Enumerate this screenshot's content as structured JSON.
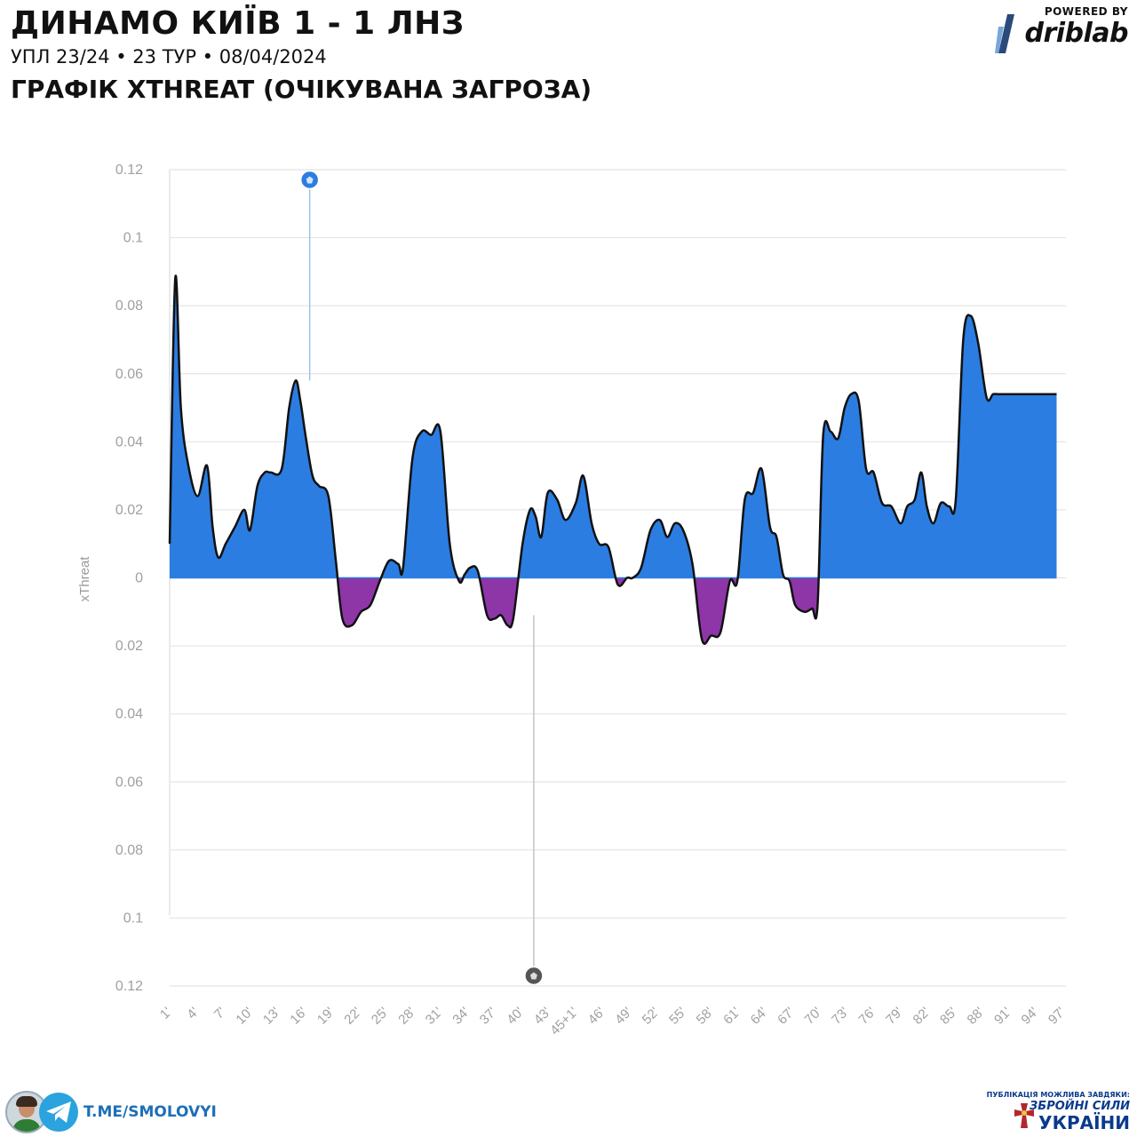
{
  "header": {
    "title": "ДИНАМО КИЇВ 1 - 1 ЛНЗ",
    "subtitle": "УПЛ 23/24 • 23 ТУР • 08/04/2024",
    "chart_heading": "ГРАФІК XTHREAT (ОЧІКУВАНА ЗАГРОЗА)"
  },
  "brand": {
    "powered": "POWERED BY",
    "name": "driblab"
  },
  "footer": {
    "telegram": "T.ME/SMOLOVYI",
    "note": "ПУБЛІКАЦІЯ МОЖЛИВА ЗАВДЯКИ:",
    "line1": "ЗБРОЙНІ СИЛИ",
    "line2": "УКРАЇНИ"
  },
  "colors": {
    "positive": "#2b7de1",
    "negative": "#8e35a8",
    "line": "#111111",
    "grid": "#e4e4e4",
    "home_goal": "#2b7de1",
    "away_goal": "#555555"
  },
  "chart_data": {
    "type": "area",
    "ylabel": "xThreat",
    "ylim": [
      -0.12,
      0.12
    ],
    "y_ticks": [
      "0.12",
      "0.1",
      "0.08",
      "0.06",
      "0.04",
      "0.02",
      "0",
      "0.02",
      "0.04",
      "0.06",
      "0.08",
      "0.1",
      "0.12"
    ],
    "y_tick_values": [
      0.12,
      0.1,
      0.08,
      0.06,
      0.04,
      0.02,
      0,
      -0.02,
      -0.04,
      -0.06,
      -0.08,
      -0.1,
      -0.12
    ],
    "categories": [
      "1'",
      "4'",
      "7'",
      "10'",
      "13'",
      "16'",
      "19'",
      "22'",
      "25'",
      "28'",
      "31'",
      "34'",
      "37'",
      "40'",
      "43'",
      "45+1'",
      "46'",
      "49'",
      "52'",
      "55'",
      "58'",
      "61'",
      "64'",
      "67'",
      "70'",
      "73'",
      "76'",
      "79'",
      "82'",
      "85'",
      "88'",
      "91'",
      "94'",
      "97'"
    ],
    "series": [
      {
        "x": [
          1,
          1.6,
          2.2,
          3.0,
          4.0,
          5.0,
          5.6,
          6.2,
          7.0,
          8.0,
          9.0,
          9.6,
          10.4,
          11.2,
          11.8,
          13.0,
          13.8,
          14.5,
          15.0,
          15.6,
          16.3,
          17.0,
          18.0,
          18.8,
          19.5,
          20.5,
          21.5,
          22.5,
          23.5,
          24.5,
          25.5,
          26.0,
          27.0,
          28.0,
          29.0,
          30.0,
          31.0,
          32.0,
          32.6,
          33.2,
          34.0,
          35.0,
          35.8,
          36.5,
          37.2,
          37.8,
          38.8,
          39.6,
          40.2,
          40.8,
          41.5,
          42.5,
          43.4,
          44.5,
          45.3,
          46.2,
          47.0,
          48.0,
          49.0,
          50.0,
          50.6,
          51.5,
          52.5,
          53.5,
          54.3,
          55.1,
          56.0,
          57.0,
          58.0,
          59.0,
          60.0,
          61.0,
          61.8,
          62.6,
          63.5,
          64.4,
          65.3,
          66.0,
          66.7,
          67.4,
          68.0,
          69.0,
          69.8,
          70.4,
          71.0,
          71.8,
          72.6,
          73.3,
          74.0,
          74.8,
          75.6,
          76.4,
          77.3,
          78.3,
          79.3,
          80.0,
          80.8,
          81.5,
          82.1,
          82.8,
          83.6,
          84.5,
          85.2,
          86.0,
          86.8,
          87.6,
          88.5,
          89.2,
          89.8,
          90.4,
          91.0,
          91.8,
          92.5,
          93.2,
          94.0,
          94.6,
          95.1,
          95.6,
          96.0
        ],
        "values": [
          0.01,
          0.088,
          0.05,
          0.033,
          0.024,
          0.033,
          0.015,
          0.006,
          0.01,
          0.015,
          0.02,
          0.014,
          0.027,
          0.031,
          0.031,
          0.032,
          0.05,
          0.058,
          0.052,
          0.041,
          0.03,
          0.027,
          0.024,
          0.005,
          -0.012,
          -0.014,
          -0.01,
          -0.008,
          -0.001,
          0.005,
          0.004,
          0.003,
          0.035,
          0.043,
          0.042,
          0.043,
          0.01,
          -0.001,
          0.001,
          0.003,
          0.002,
          -0.011,
          -0.012,
          -0.011,
          -0.014,
          -0.012,
          0.01,
          0.02,
          0.018,
          0.012,
          0.025,
          0.023,
          0.017,
          0.022,
          0.03,
          0.016,
          0.01,
          0.009,
          -0.002,
          0.0,
          0.0,
          0.003,
          0.014,
          0.017,
          0.012,
          0.016,
          0.014,
          0.004,
          -0.018,
          -0.017,
          -0.016,
          -0.001,
          -0.001,
          0.023,
          0.025,
          0.032,
          0.015,
          0.012,
          0.001,
          -0.001,
          -0.008,
          -0.01,
          -0.009,
          -0.008,
          0.042,
          0.043,
          0.041,
          0.05,
          0.054,
          0.052,
          0.032,
          0.031,
          0.022,
          0.021,
          0.016,
          0.021,
          0.023,
          0.031,
          0.021,
          0.016,
          0.022,
          0.021,
          0.023,
          0.07,
          0.077,
          0.069,
          0.053,
          0.054,
          0.054,
          0.054,
          0.054,
          0.054,
          0.054,
          0.054,
          0.054,
          0.054,
          0.054,
          0.054,
          0.054
        ]
      }
    ],
    "goals": [
      {
        "team": "home",
        "minute": 16,
        "value": 0.117
      },
      {
        "team": "away",
        "minute": 40,
        "value": -0.117
      }
    ],
    "grid": true
  }
}
